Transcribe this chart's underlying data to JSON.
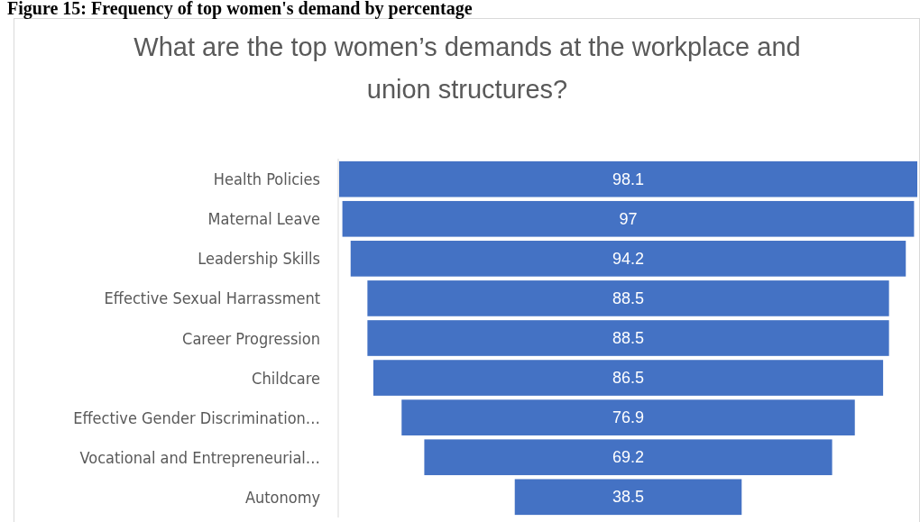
{
  "chart_data": {
    "type": "other",
    "title": "Figure 15: Frequency of top women's demand by percentage",
    "subtitle": "What are the top women’s demands at the workplace and union structures?",
    "categories": [
      "Health Policies",
      "Maternal Leave",
      "Leadership Skills",
      "Effective Sexual Harrassment",
      "Career Progression",
      "Childcare",
      "Effective Gender Discrimination…",
      "Vocational and Entrepreneurial…",
      "Autonomy"
    ],
    "values": [
      98.1,
      97,
      94.2,
      88.5,
      88.5,
      86.5,
      76.9,
      69.2,
      38.5
    ],
    "color": "#4472c4",
    "data_labels": true
  }
}
